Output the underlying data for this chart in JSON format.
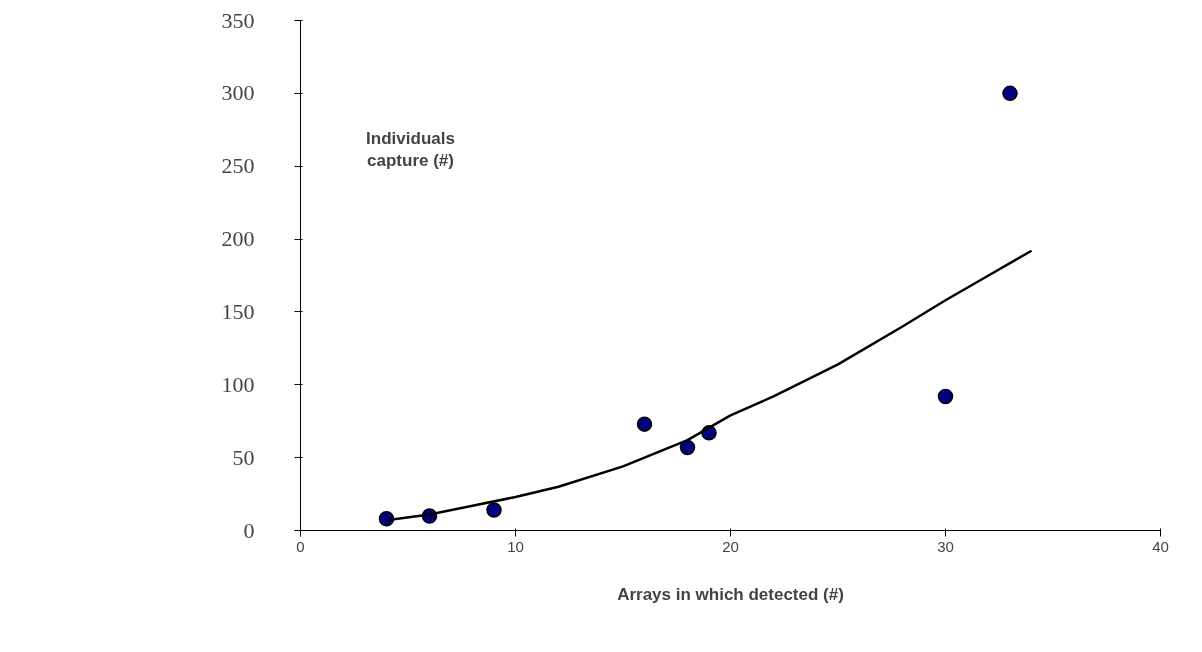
{
  "chart_data": {
    "type": "scatter",
    "xlabel": "Arrays in which detected (#)",
    "ylabel": "Individuals\ncapture (#)",
    "xlim": [
      0,
      40
    ],
    "xticks": [
      0,
      10,
      20,
      30,
      40
    ],
    "ylim": [
      0,
      350
    ],
    "yticks": [
      0,
      50,
      100,
      150,
      200,
      250,
      300,
      350
    ],
    "grid": false,
    "marker": "circle",
    "series": [
      {
        "color": "#000080",
        "x": [
          4,
          6,
          9,
          16,
          18,
          19,
          30,
          33
        ],
        "values": [
          8,
          10,
          14,
          73,
          57,
          67,
          92,
          300
        ]
      },
      {
        "type": "line",
        "color": "#000000",
        "marker": "none",
        "x": [
          4,
          6,
          8,
          10,
          12,
          15,
          18,
          20,
          22,
          25,
          28,
          30,
          32,
          34
        ],
        "values": [
          7,
          11,
          17,
          23,
          30,
          44,
          62,
          79,
          92,
          114,
          140,
          158,
          175,
          192
        ]
      }
    ]
  }
}
